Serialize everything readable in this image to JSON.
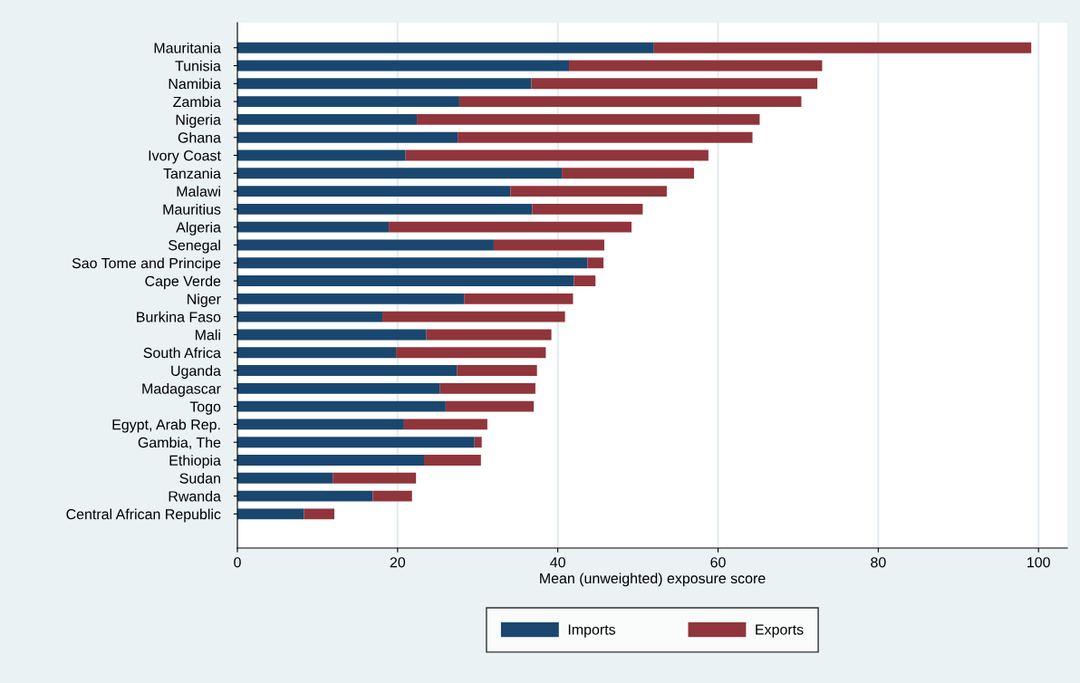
{
  "chart_data": {
    "type": "bar",
    "orientation": "horizontal",
    "stacked": true,
    "xlabel": "Mean (unweighted) exposure score",
    "categories": [
      "Mauritania",
      "Tunisia",
      "Namibia",
      "Zambia",
      "Nigeria",
      "Ghana",
      "Ivory Coast",
      "Tanzania",
      "Malawi",
      "Mauritius",
      "Algeria",
      "Senegal",
      "Sao Tome and Principe",
      "Cape Verde",
      "Niger",
      "Burkina Faso",
      "Mali",
      "South Africa",
      "Uganda",
      "Madagascar",
      "Togo",
      "Egypt, Arab Rep.",
      "Gambia, The",
      "Ethiopia",
      "Sudan",
      "Rwanda",
      "Central African Republic"
    ],
    "series": [
      {
        "name": "Imports",
        "color": "#1a476f",
        "values": [
          52.0,
          41.4,
          36.7,
          27.7,
          22.4,
          27.5,
          21.0,
          40.5,
          34.1,
          36.8,
          18.9,
          32.0,
          43.7,
          42.0,
          28.3,
          18.1,
          23.6,
          19.8,
          27.4,
          25.3,
          26.0,
          20.8,
          29.6,
          23.3,
          11.9,
          16.9,
          8.3
        ]
      },
      {
        "name": "Exports",
        "color": "#90353b",
        "values": [
          47.1,
          31.6,
          35.7,
          42.7,
          42.8,
          36.8,
          37.8,
          16.5,
          19.5,
          13.8,
          30.3,
          13.8,
          2.0,
          2.7,
          13.6,
          22.8,
          15.6,
          18.7,
          10.0,
          11.9,
          11.0,
          10.4,
          0.9,
          7.1,
          10.4,
          4.9,
          3.8
        ]
      }
    ],
    "xlim": [
      0,
      103.6
    ],
    "xticks": [
      0,
      20,
      40,
      60,
      80,
      100
    ],
    "grid": "x",
    "legend": "bottom"
  }
}
